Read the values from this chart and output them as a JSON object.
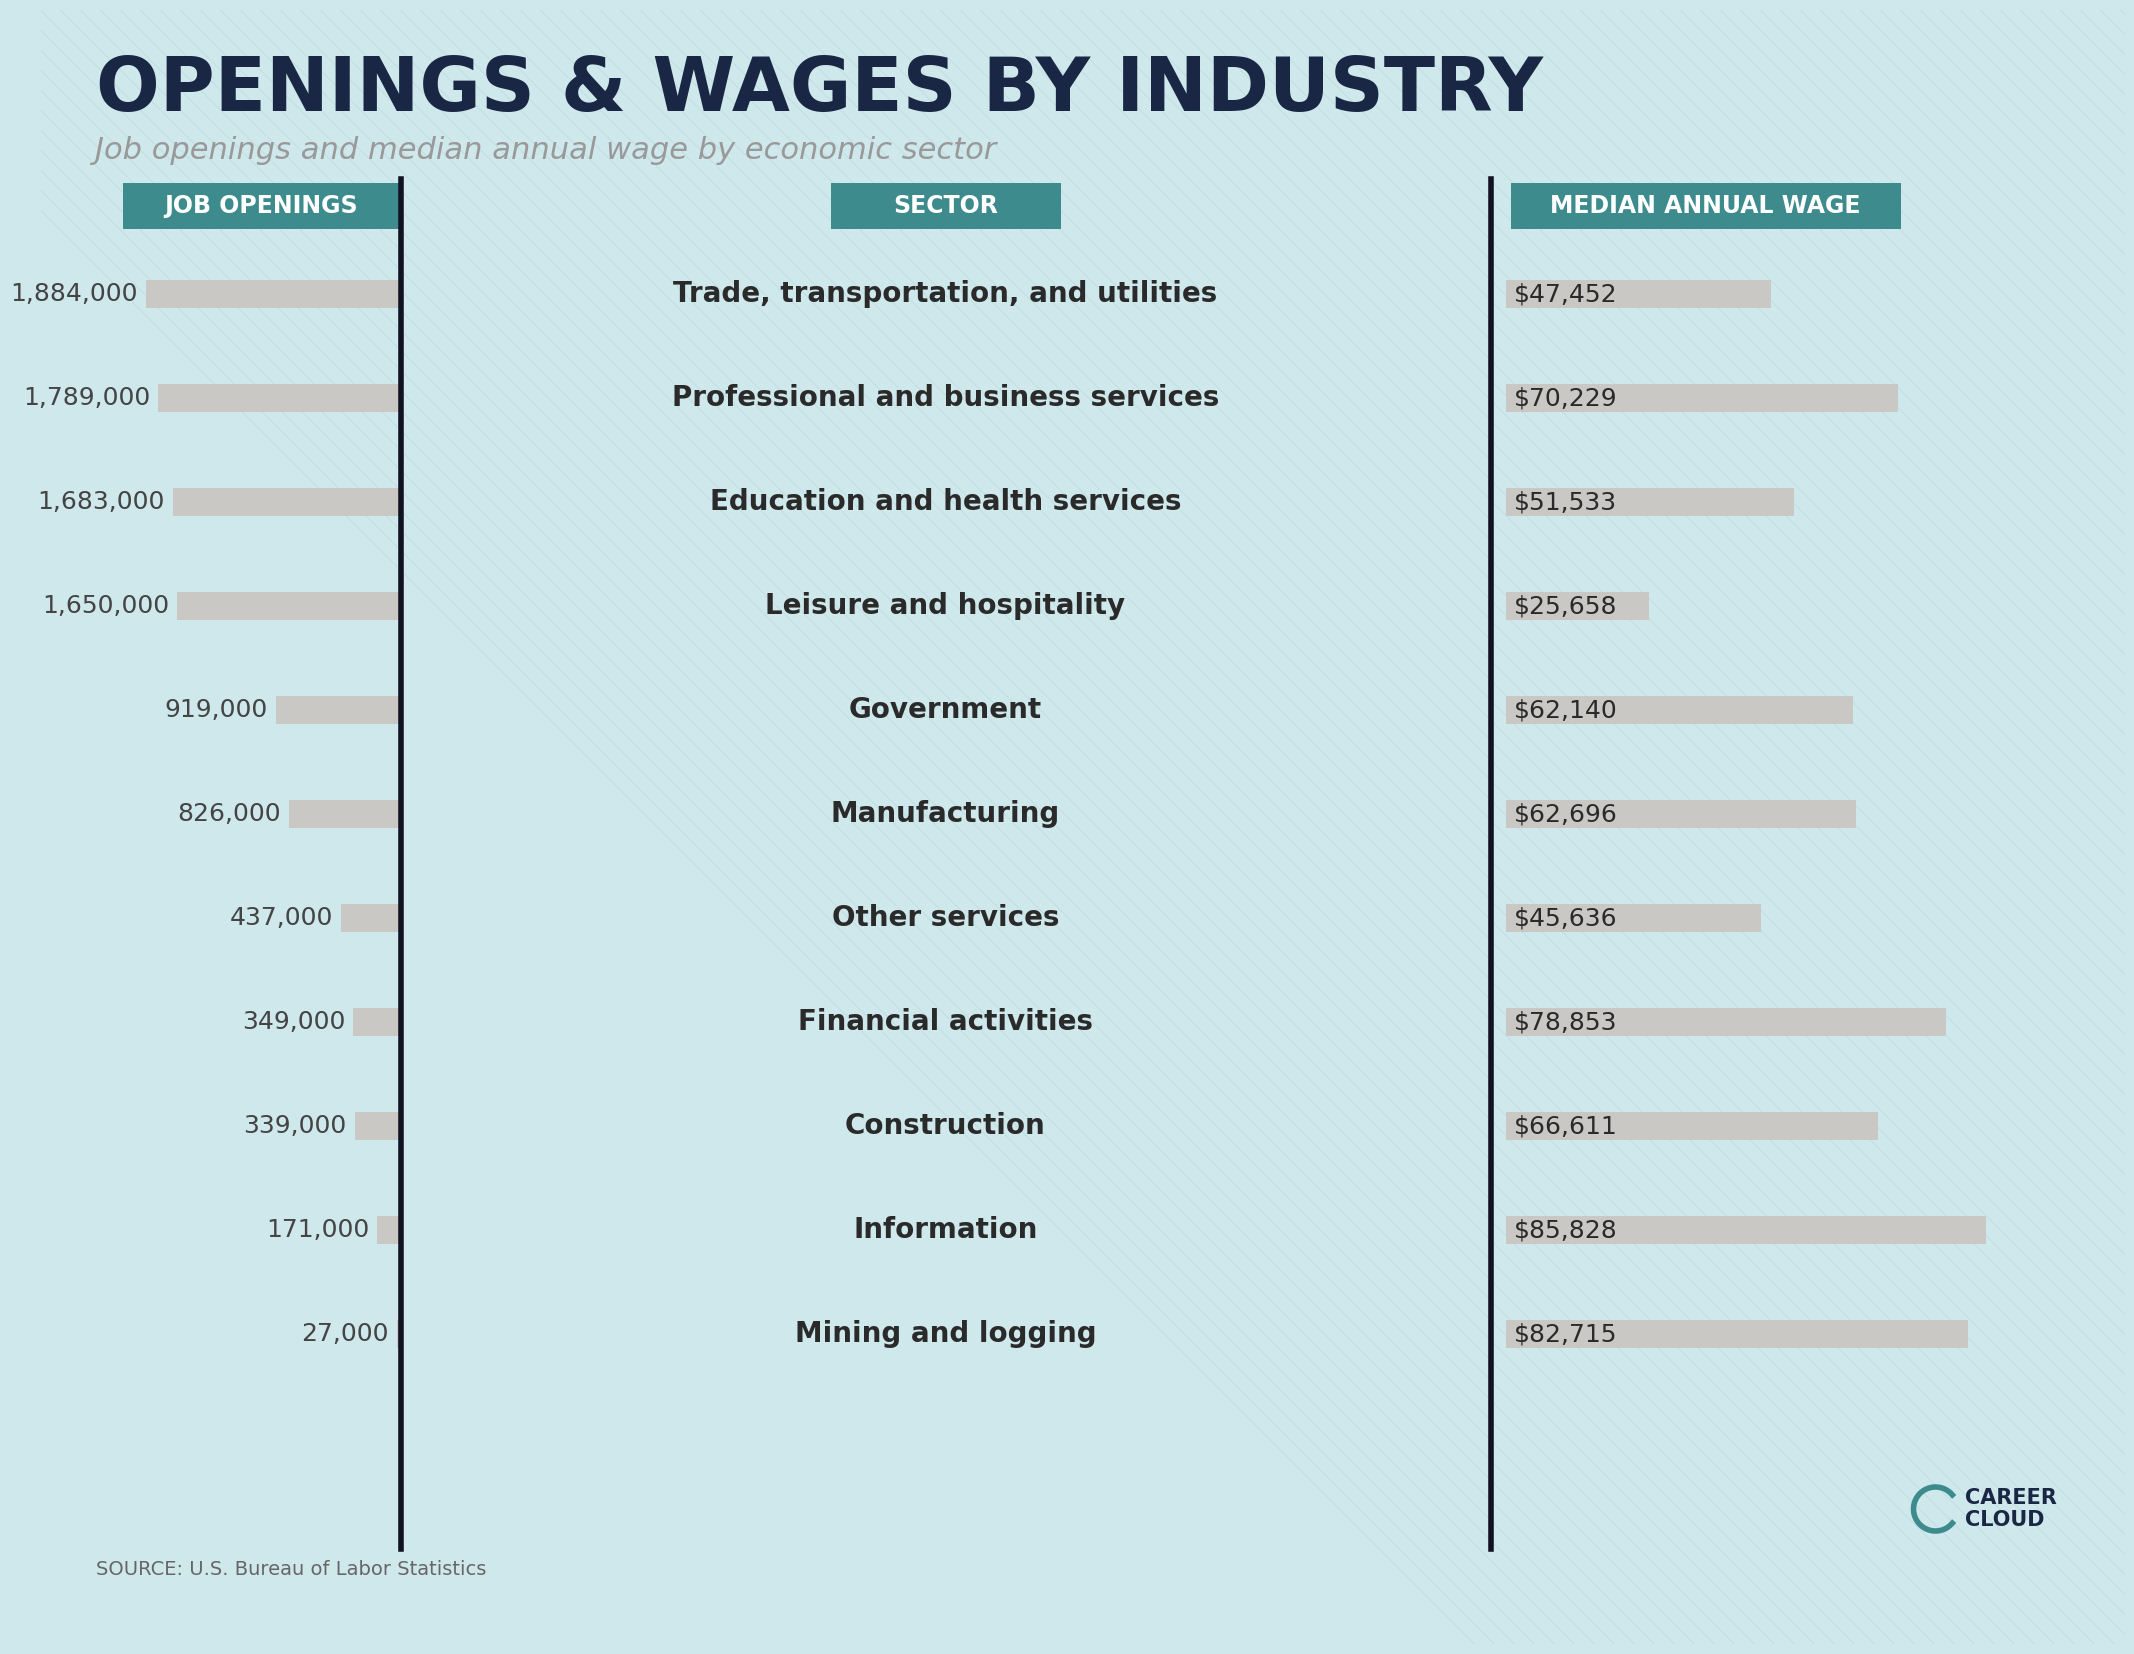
{
  "title": "OPENINGS & WAGES BY INDUSTRY",
  "subtitle": "Job openings and median annual wage by economic sector",
  "source": "SOURCE: U.S. Bureau of Labor Statistics",
  "background_color": "#cfe8ec",
  "header_color": "#3d8b8d",
  "header_text_color": "#ffffff",
  "divider_color": "#111122",
  "title_color": "#1a2744",
  "subtitle_color": "#999999",
  "sector_text_color": "#2a2a2a",
  "openings_label_color": "#444444",
  "bar_color": "#c9c5c1",
  "figsize": [
    20.84,
    16.34
  ],
  "dpi": 100,
  "sectors": [
    "Trade, transportation, and utilities",
    "Professional and business services",
    "Education and health services",
    "Leisure and hospitality",
    "Government",
    "Manufacturing",
    "Other services",
    "Financial activities",
    "Construction",
    "Information",
    "Mining and logging"
  ],
  "job_openings": [
    1884000,
    1789000,
    1683000,
    1650000,
    919000,
    826000,
    437000,
    349000,
    339000,
    171000,
    27000
  ],
  "job_openings_labels": [
    "1,884,000",
    "1,789,000",
    "1,683,000",
    "1,650,000",
    "919,000",
    "826,000",
    "437,000",
    "349,000",
    "339,000",
    "171,000",
    "27,000"
  ],
  "median_wages": [
    47452,
    70229,
    51533,
    25658,
    62140,
    62696,
    45636,
    78853,
    66611,
    85828,
    82715
  ],
  "median_wages_labels": [
    "$47,452",
    "$70,229",
    "$51,533",
    "$25,658",
    "$62,140",
    "$62,696",
    "$45,636",
    "$78,853",
    "$66,611",
    "$85,828",
    "$82,715"
  ]
}
